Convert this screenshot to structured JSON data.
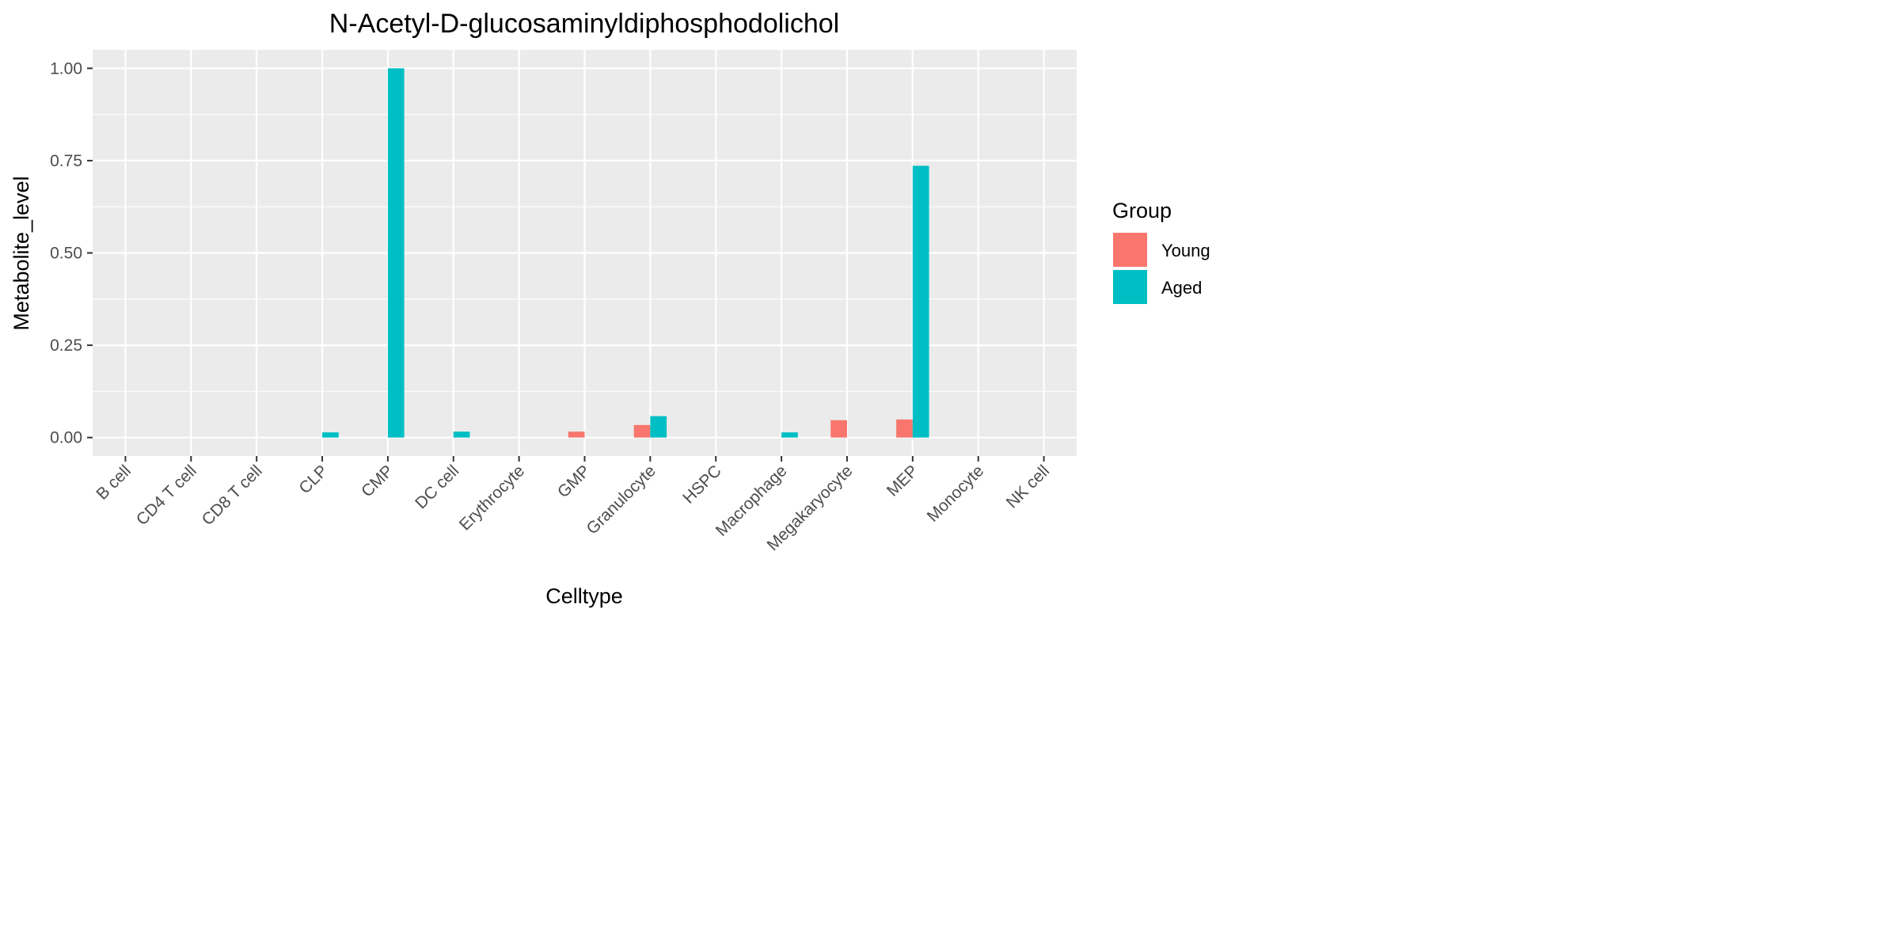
{
  "chart_data": {
    "type": "bar",
    "title": "N-Acetyl-D-glucosaminyldiphosphodolichol",
    "xlabel": "Celltype",
    "ylabel": "Metabolite_level",
    "ylim": [
      -0.05,
      1.05
    ],
    "yticks": [
      0.0,
      0.25,
      0.5,
      0.75,
      1.0
    ],
    "ytick_labels": [
      "0.00",
      "0.25",
      "0.50",
      "0.75",
      "1.00"
    ],
    "grid": true,
    "legend": {
      "title": "Group",
      "position": "right"
    },
    "categories": [
      "B cell",
      "CD4 T cell",
      "CD8 T cell",
      "CLP",
      "CMP",
      "DC cell",
      "Erythrocyte",
      "GMP",
      "Granulocyte",
      "HSPC",
      "Macrophage",
      "Megakaryocyte",
      "MEP",
      "Monocyte",
      "NK cell"
    ],
    "series": [
      {
        "name": "Young",
        "color": "#F8766D",
        "values": [
          0,
          0,
          0,
          0,
          0,
          0,
          0,
          0.016,
          0.034,
          0,
          0,
          0.047,
          0.049,
          0,
          0
        ]
      },
      {
        "name": "Aged",
        "color": "#00BFC4",
        "values": [
          0,
          0,
          0,
          0.014,
          1.0,
          0.016,
          0,
          0,
          0.058,
          0,
          0.014,
          0,
          0.736,
          0,
          0
        ]
      }
    ]
  }
}
